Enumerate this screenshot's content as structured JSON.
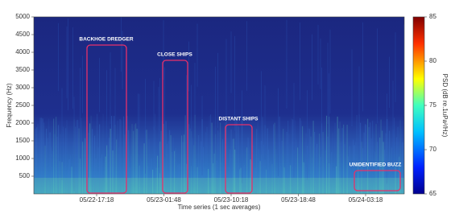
{
  "chart_data": {
    "type": "spectrogram",
    "xlabel": "Time series (1 sec averages)",
    "ylabel": "Frequency (Hz)",
    "ylim": [
      0,
      5000
    ],
    "yticks": [
      500,
      1000,
      1500,
      2000,
      2500,
      3000,
      3500,
      4000,
      4500,
      5000
    ],
    "x_labels": [
      "05/22-17:18",
      "05/23-01:48",
      "05/23-10:18",
      "05/23-18:48",
      "05/24-03:18"
    ],
    "colorbar": {
      "label": "PSD (dB re.1uPa²/Hz)",
      "lim": [
        65,
        85
      ],
      "ticks": [
        65,
        70,
        75,
        80,
        85
      ]
    },
    "annotations": [
      {
        "text": "BACKHOE DREDGER"
      },
      {
        "text": "CLOSE SHIPS"
      },
      {
        "text": "DISTANT SHIPS"
      },
      {
        "text": "UNIDENTIFIED BUZZ"
      }
    ]
  }
}
